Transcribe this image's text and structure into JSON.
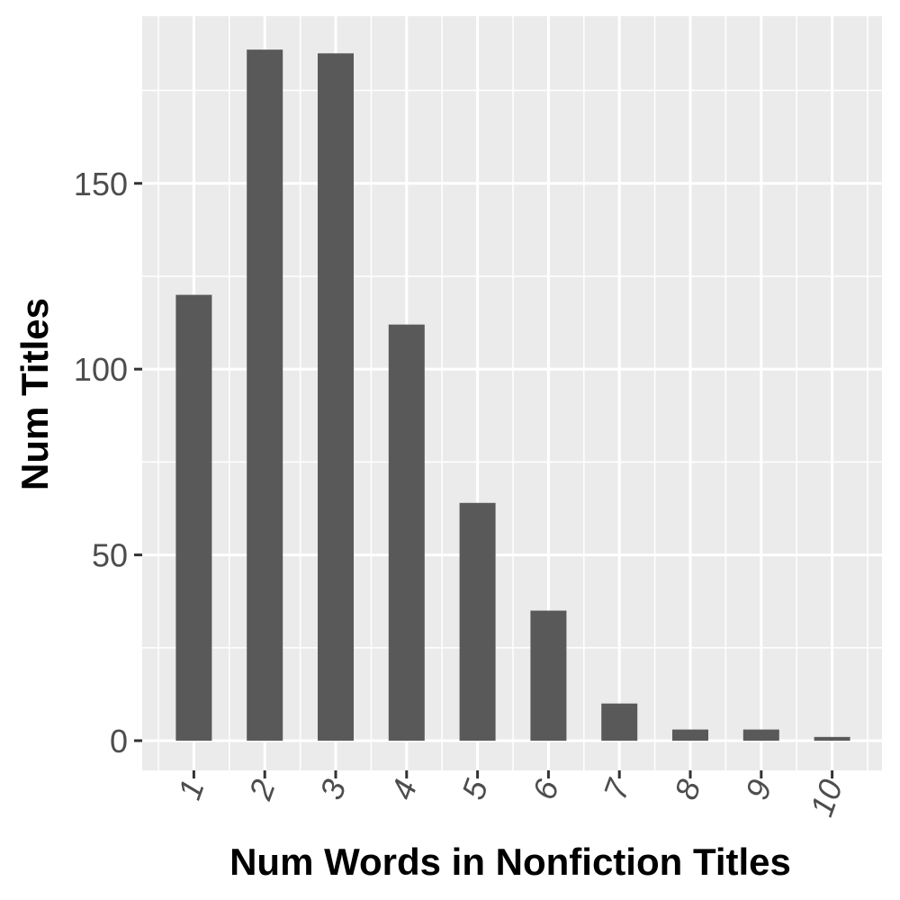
{
  "chart_data": {
    "type": "bar",
    "categories": [
      "1",
      "2",
      "3",
      "4",
      "5",
      "6",
      "7",
      "8",
      "9",
      "10"
    ],
    "values": [
      120,
      186,
      185,
      112,
      64,
      35,
      10,
      3,
      3,
      1
    ],
    "title": "",
    "xlabel": "Num Words in Nonfiction Titles",
    "ylabel": "Num Titles",
    "ylim": [
      -8,
      195
    ],
    "yticks": [
      0,
      50,
      100,
      150
    ],
    "grid": true,
    "colors": {
      "bar": "#595959",
      "panel": "#ebebeb",
      "grid": "#ffffff",
      "tick": "#4d4d4d"
    }
  }
}
